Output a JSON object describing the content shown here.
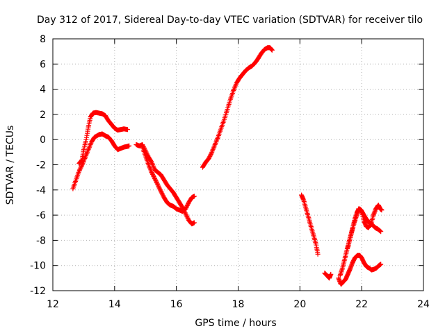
{
  "chart_data": {
    "type": "scatter",
    "title": "Day 312 of 2017, Sidereal Day-to-day VTEC variation (SDTVAR) for receiver tilo",
    "xlabel": "GPS time / hours",
    "ylabel": "SDTVAR / TECUs",
    "xlim": [
      12,
      24
    ],
    "ylim": [
      -12,
      8
    ],
    "xticks": [
      12,
      14,
      16,
      18,
      20,
      22,
      24
    ],
    "yticks": [
      -12,
      -10,
      -8,
      -6,
      -4,
      -2,
      0,
      2,
      4,
      6,
      8
    ],
    "grid": true,
    "legend": "none",
    "marker": "+",
    "color": "#ff0000",
    "series": [
      {
        "values": [
          [
            12.65,
            -3.9
          ],
          [
            12.75,
            -3.2
          ],
          [
            12.85,
            -2.5
          ],
          [
            12.95,
            -2.0
          ],
          [
            13.05,
            -1.4
          ],
          [
            13.15,
            -0.8
          ],
          [
            13.25,
            -0.2
          ],
          [
            13.35,
            0.2
          ],
          [
            13.5,
            0.4
          ],
          [
            13.6,
            0.45
          ],
          [
            13.7,
            0.3
          ],
          [
            13.8,
            0.2
          ],
          [
            13.9,
            -0.1
          ],
          [
            14.0,
            -0.5
          ],
          [
            14.1,
            -0.8
          ],
          [
            14.2,
            -0.7
          ],
          [
            14.3,
            -0.6
          ],
          [
            14.4,
            -0.55
          ],
          [
            14.47,
            -0.5
          ]
        ]
      },
      {
        "values": [
          [
            12.85,
            -1.9
          ],
          [
            12.95,
            -1.6
          ],
          [
            13.0,
            -0.8
          ],
          [
            13.08,
            0.0
          ],
          [
            13.15,
            1.0
          ],
          [
            13.22,
            1.8
          ],
          [
            13.3,
            2.1
          ],
          [
            13.4,
            2.15
          ],
          [
            13.5,
            2.1
          ],
          [
            13.6,
            2.05
          ],
          [
            13.7,
            1.9
          ],
          [
            13.8,
            1.5
          ],
          [
            13.9,
            1.2
          ],
          [
            14.0,
            0.9
          ],
          [
            14.1,
            0.75
          ],
          [
            14.2,
            0.8
          ],
          [
            14.3,
            0.85
          ],
          [
            14.42,
            0.8
          ]
        ]
      },
      {
        "values": [
          [
            14.7,
            -0.4
          ],
          [
            14.8,
            -0.5
          ],
          [
            14.9,
            -0.4
          ],
          [
            15.0,
            -0.9
          ],
          [
            15.1,
            -1.4
          ],
          [
            15.2,
            -1.8
          ],
          [
            15.3,
            -2.4
          ],
          [
            15.4,
            -2.6
          ],
          [
            15.5,
            -2.8
          ],
          [
            15.6,
            -3.2
          ],
          [
            15.7,
            -3.6
          ],
          [
            15.8,
            -3.9
          ],
          [
            15.9,
            -4.2
          ],
          [
            16.0,
            -4.6
          ],
          [
            16.1,
            -5.0
          ],
          [
            16.2,
            -5.4
          ],
          [
            16.3,
            -5.9
          ],
          [
            16.4,
            -6.4
          ],
          [
            16.5,
            -6.7
          ],
          [
            16.58,
            -6.6
          ]
        ]
      },
      {
        "values": [
          [
            14.9,
            -0.6
          ],
          [
            15.0,
            -1.3
          ],
          [
            15.1,
            -2.0
          ],
          [
            15.2,
            -2.6
          ],
          [
            15.3,
            -3.1
          ],
          [
            15.4,
            -3.6
          ],
          [
            15.5,
            -4.1
          ],
          [
            15.6,
            -4.6
          ],
          [
            15.7,
            -5.0
          ],
          [
            15.8,
            -5.2
          ],
          [
            15.9,
            -5.3
          ],
          [
            16.0,
            -5.5
          ],
          [
            16.1,
            -5.6
          ],
          [
            16.2,
            -5.7
          ],
          [
            16.3,
            -5.5
          ],
          [
            16.4,
            -5.0
          ],
          [
            16.5,
            -4.6
          ],
          [
            16.58,
            -4.5
          ]
        ]
      },
      {
        "values": [
          [
            16.85,
            -2.2
          ],
          [
            16.95,
            -1.8
          ],
          [
            17.05,
            -1.5
          ],
          [
            17.15,
            -1.0
          ],
          [
            17.25,
            -0.4
          ],
          [
            17.35,
            0.2
          ],
          [
            17.45,
            0.9
          ],
          [
            17.55,
            1.6
          ],
          [
            17.65,
            2.4
          ],
          [
            17.75,
            3.2
          ],
          [
            17.85,
            3.9
          ],
          [
            17.95,
            4.5
          ],
          [
            18.05,
            4.9
          ],
          [
            18.15,
            5.2
          ],
          [
            18.25,
            5.5
          ],
          [
            18.35,
            5.7
          ],
          [
            18.45,
            5.85
          ],
          [
            18.55,
            6.1
          ],
          [
            18.65,
            6.45
          ],
          [
            18.75,
            6.85
          ],
          [
            18.85,
            7.15
          ],
          [
            18.95,
            7.3
          ],
          [
            19.03,
            7.3
          ],
          [
            19.1,
            7.1
          ]
        ]
      },
      {
        "values": [
          [
            20.05,
            -4.4
          ],
          [
            20.12,
            -4.8
          ],
          [
            20.2,
            -5.5
          ],
          [
            20.28,
            -6.2
          ],
          [
            20.36,
            -6.9
          ],
          [
            20.44,
            -7.6
          ],
          [
            20.52,
            -8.3
          ],
          [
            20.58,
            -9.1
          ]
        ]
      },
      {
        "values": [
          [
            20.8,
            -10.6
          ],
          [
            20.88,
            -10.8
          ],
          [
            20.95,
            -11.0
          ],
          [
            21.0,
            -10.7
          ]
        ]
      },
      {
        "values": [
          [
            21.25,
            -11.0
          ],
          [
            21.33,
            -11.5
          ],
          [
            21.4,
            -11.3
          ],
          [
            21.48,
            -11.1
          ],
          [
            21.55,
            -10.7
          ],
          [
            21.62,
            -10.3
          ],
          [
            21.7,
            -9.8
          ],
          [
            21.78,
            -9.4
          ],
          [
            21.86,
            -9.2
          ],
          [
            21.94,
            -9.2
          ],
          [
            22.0,
            -9.4
          ],
          [
            22.08,
            -9.8
          ],
          [
            22.16,
            -10.1
          ],
          [
            22.24,
            -10.2
          ],
          [
            22.32,
            -10.35
          ],
          [
            22.4,
            -10.3
          ],
          [
            22.48,
            -10.2
          ],
          [
            22.56,
            -10.0
          ],
          [
            22.62,
            -9.9
          ]
        ]
      },
      {
        "values": [
          [
            21.3,
            -10.8
          ],
          [
            21.38,
            -10.2
          ],
          [
            21.45,
            -9.5
          ],
          [
            21.52,
            -8.8
          ],
          [
            21.6,
            -8.0
          ],
          [
            21.68,
            -7.3
          ],
          [
            21.76,
            -6.6
          ],
          [
            21.84,
            -6.0
          ],
          [
            21.9,
            -5.5
          ],
          [
            21.98,
            -5.6
          ],
          [
            22.05,
            -5.9
          ],
          [
            22.12,
            -6.2
          ],
          [
            22.2,
            -6.5
          ],
          [
            22.28,
            -6.6
          ],
          [
            22.36,
            -6.8
          ],
          [
            22.44,
            -7.0
          ],
          [
            22.52,
            -7.1
          ],
          [
            22.62,
            -7.3
          ]
        ]
      },
      {
        "values": [
          [
            21.55,
            -8.6
          ],
          [
            21.62,
            -7.9
          ],
          [
            21.7,
            -7.1
          ],
          [
            21.78,
            -6.3
          ],
          [
            21.86,
            -5.7
          ],
          [
            21.94,
            -5.5
          ],
          [
            22.0,
            -5.7
          ],
          [
            22.08,
            -6.5
          ],
          [
            22.15,
            -6.9
          ],
          [
            22.22,
            -7.0
          ],
          [
            22.3,
            -6.7
          ],
          [
            22.38,
            -6.0
          ],
          [
            22.46,
            -5.5
          ],
          [
            22.54,
            -5.2
          ],
          [
            22.6,
            -5.5
          ],
          [
            22.65,
            -5.6
          ]
        ]
      }
    ]
  }
}
